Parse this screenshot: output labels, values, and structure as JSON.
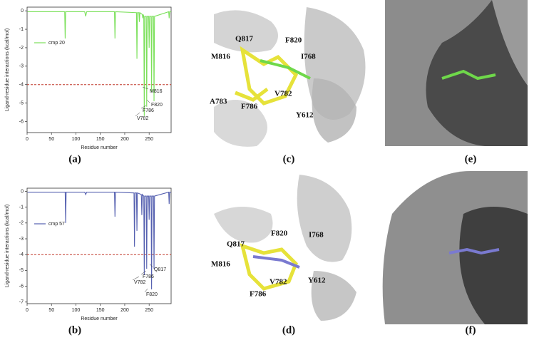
{
  "chart_data": [
    {
      "type": "line",
      "xlabel": "Residue number",
      "ylabel": "Ligand-residue interactions (kcal/mol)",
      "xlim": [
        0,
        295
      ],
      "xticks": [
        0,
        50,
        100,
        150,
        200,
        250
      ],
      "ylim": [
        -6.6,
        0.2
      ],
      "yticks": [
        0,
        -1,
        -2,
        -3,
        -4,
        -5,
        -6
      ],
      "series": [
        {
          "name": "cmp 20",
          "color": "#7be05a",
          "x": [
            1,
            77,
            78,
            79,
            118,
            120,
            122,
            179,
            180,
            181,
            224,
            225,
            226,
            229,
            230,
            231,
            236,
            237,
            238,
            239,
            240,
            241,
            244,
            245,
            246,
            249,
            250,
            251,
            254,
            255,
            256,
            259,
            260,
            261,
            290,
            291,
            292,
            295
          ],
          "values": [
            -0.05,
            -0.05,
            -1.5,
            -0.05,
            -0.05,
            -0.3,
            -0.05,
            -0.05,
            -1.5,
            -0.05,
            -0.1,
            -2.6,
            -0.1,
            -0.1,
            -0.6,
            -0.1,
            -0.2,
            -0.4,
            -0.2,
            -0.3,
            -5.7,
            -0.3,
            -0.3,
            -5.2,
            -0.3,
            -0.3,
            -2.0,
            -0.3,
            -0.3,
            -4.4,
            -0.3,
            -0.3,
            -4.9,
            -0.3,
            -0.05,
            -0.4,
            -0.05,
            -0.05
          ]
        }
      ],
      "reference_line": {
        "value": -4,
        "color": "#c0392b"
      },
      "legend": "upper-left",
      "annotations": [
        "M816",
        "F820",
        "F786",
        "V782"
      ]
    },
    {
      "type": "line",
      "xlabel": "Residue number",
      "ylabel": "Ligand-residue interactions (kcal/mol)",
      "xlim": [
        0,
        295
      ],
      "xticks": [
        0,
        50,
        100,
        150,
        200,
        250
      ],
      "ylim": [
        -7.1,
        0.2
      ],
      "yticks": [
        0,
        -1,
        -2,
        -3,
        -4,
        -5,
        -6,
        -7
      ],
      "series": [
        {
          "name": "cmp 57",
          "color": "#5560b0",
          "x": [
            1,
            78,
            79,
            80,
            118,
            120,
            122,
            179,
            180,
            181,
            219,
            220,
            221,
            224,
            225,
            226,
            234,
            235,
            236,
            239,
            240,
            241,
            244,
            245,
            246,
            249,
            250,
            251,
            254,
            255,
            256,
            259,
            260,
            261,
            290,
            291,
            292,
            295
          ],
          "values": [
            -0.05,
            -0.05,
            -2.0,
            -0.05,
            -0.05,
            -0.2,
            -0.05,
            -0.05,
            -1.6,
            -0.05,
            -0.1,
            -3.5,
            -0.1,
            -0.1,
            -2.5,
            -0.1,
            -0.2,
            -1.5,
            -0.2,
            -0.3,
            -5.3,
            -0.3,
            -0.3,
            -4.9,
            -0.3,
            -0.3,
            -1.8,
            -0.3,
            -0.3,
            -6.2,
            -0.3,
            -0.3,
            -4.9,
            -0.3,
            -0.05,
            -0.8,
            -0.05,
            -0.05
          ]
        }
      ],
      "reference_line": {
        "value": -4,
        "color": "#c0392b"
      },
      "legend": "upper-left",
      "annotations": [
        "Q817",
        "F786",
        "V782",
        "F820"
      ]
    }
  ],
  "panels": [
    "(a)",
    "(b)",
    "(c)",
    "(d)",
    "(e)",
    "(f)"
  ],
  "structures": {
    "c": [
      "Q817",
      "F820",
      "M816",
      "I768",
      "V782",
      "A783",
      "F786",
      "Y612"
    ],
    "d": [
      "F820",
      "I768",
      "Q817",
      "M816",
      "V782",
      "Y612",
      "F786"
    ]
  }
}
